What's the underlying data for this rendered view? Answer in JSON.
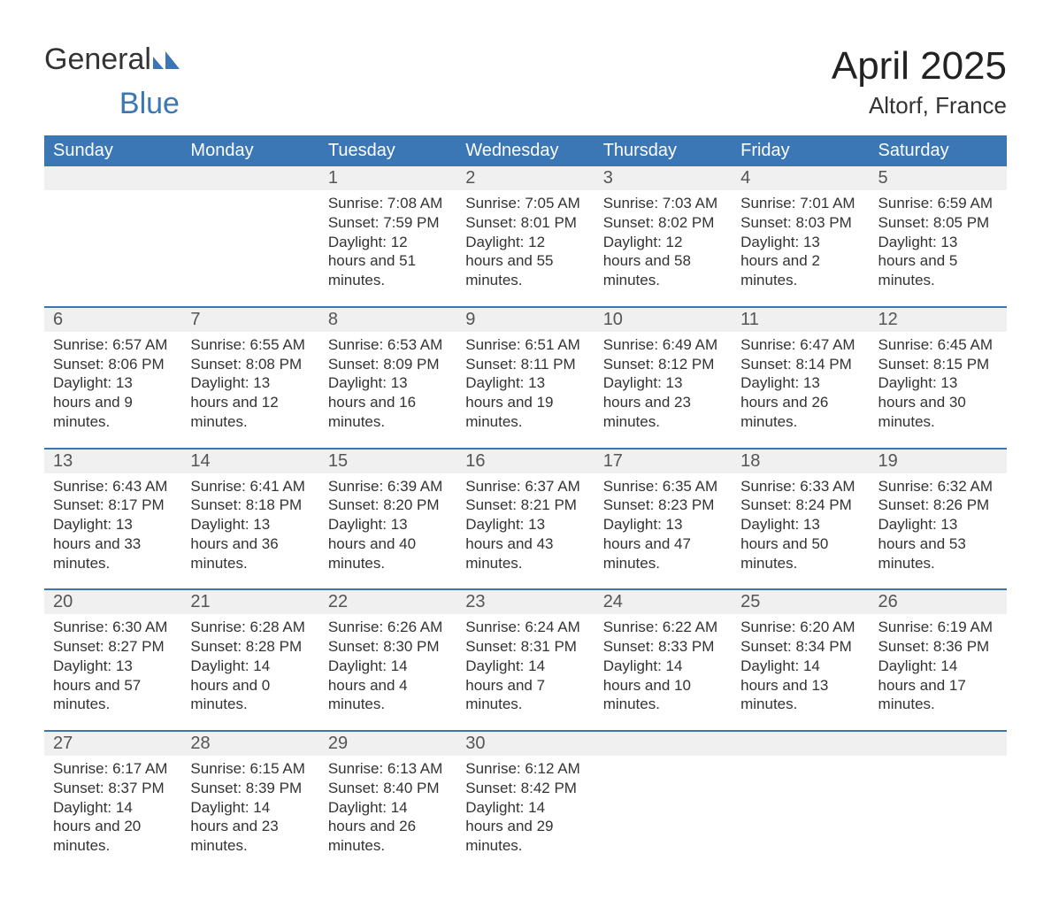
{
  "brand": {
    "word1": "General",
    "word2": "Blue"
  },
  "title": "April 2025",
  "location": "Altorf, France",
  "colors": {
    "header_bg": "#3b76b5",
    "header_text": "#ffffff",
    "daynum_bg": "#f0f0f0",
    "border_top": "#3b76b5",
    "body_text": "#333333",
    "page_bg": "#ffffff"
  },
  "columns": [
    "Sunday",
    "Monday",
    "Tuesday",
    "Wednesday",
    "Thursday",
    "Friday",
    "Saturday"
  ],
  "weeks": [
    [
      null,
      null,
      {
        "n": "1",
        "sunrise": "7:08 AM",
        "sunset": "7:59 PM",
        "daylight": "12 hours and 51 minutes."
      },
      {
        "n": "2",
        "sunrise": "7:05 AM",
        "sunset": "8:01 PM",
        "daylight": "12 hours and 55 minutes."
      },
      {
        "n": "3",
        "sunrise": "7:03 AM",
        "sunset": "8:02 PM",
        "daylight": "12 hours and 58 minutes."
      },
      {
        "n": "4",
        "sunrise": "7:01 AM",
        "sunset": "8:03 PM",
        "daylight": "13 hours and 2 minutes."
      },
      {
        "n": "5",
        "sunrise": "6:59 AM",
        "sunset": "8:05 PM",
        "daylight": "13 hours and 5 minutes."
      }
    ],
    [
      {
        "n": "6",
        "sunrise": "6:57 AM",
        "sunset": "8:06 PM",
        "daylight": "13 hours and 9 minutes."
      },
      {
        "n": "7",
        "sunrise": "6:55 AM",
        "sunset": "8:08 PM",
        "daylight": "13 hours and 12 minutes."
      },
      {
        "n": "8",
        "sunrise": "6:53 AM",
        "sunset": "8:09 PM",
        "daylight": "13 hours and 16 minutes."
      },
      {
        "n": "9",
        "sunrise": "6:51 AM",
        "sunset": "8:11 PM",
        "daylight": "13 hours and 19 minutes."
      },
      {
        "n": "10",
        "sunrise": "6:49 AM",
        "sunset": "8:12 PM",
        "daylight": "13 hours and 23 minutes."
      },
      {
        "n": "11",
        "sunrise": "6:47 AM",
        "sunset": "8:14 PM",
        "daylight": "13 hours and 26 minutes."
      },
      {
        "n": "12",
        "sunrise": "6:45 AM",
        "sunset": "8:15 PM",
        "daylight": "13 hours and 30 minutes."
      }
    ],
    [
      {
        "n": "13",
        "sunrise": "6:43 AM",
        "sunset": "8:17 PM",
        "daylight": "13 hours and 33 minutes."
      },
      {
        "n": "14",
        "sunrise": "6:41 AM",
        "sunset": "8:18 PM",
        "daylight": "13 hours and 36 minutes."
      },
      {
        "n": "15",
        "sunrise": "6:39 AM",
        "sunset": "8:20 PM",
        "daylight": "13 hours and 40 minutes."
      },
      {
        "n": "16",
        "sunrise": "6:37 AM",
        "sunset": "8:21 PM",
        "daylight": "13 hours and 43 minutes."
      },
      {
        "n": "17",
        "sunrise": "6:35 AM",
        "sunset": "8:23 PM",
        "daylight": "13 hours and 47 minutes."
      },
      {
        "n": "18",
        "sunrise": "6:33 AM",
        "sunset": "8:24 PM",
        "daylight": "13 hours and 50 minutes."
      },
      {
        "n": "19",
        "sunrise": "6:32 AM",
        "sunset": "8:26 PM",
        "daylight": "13 hours and 53 minutes."
      }
    ],
    [
      {
        "n": "20",
        "sunrise": "6:30 AM",
        "sunset": "8:27 PM",
        "daylight": "13 hours and 57 minutes."
      },
      {
        "n": "21",
        "sunrise": "6:28 AM",
        "sunset": "8:28 PM",
        "daylight": "14 hours and 0 minutes."
      },
      {
        "n": "22",
        "sunrise": "6:26 AM",
        "sunset": "8:30 PM",
        "daylight": "14 hours and 4 minutes."
      },
      {
        "n": "23",
        "sunrise": "6:24 AM",
        "sunset": "8:31 PM",
        "daylight": "14 hours and 7 minutes."
      },
      {
        "n": "24",
        "sunrise": "6:22 AM",
        "sunset": "8:33 PM",
        "daylight": "14 hours and 10 minutes."
      },
      {
        "n": "25",
        "sunrise": "6:20 AM",
        "sunset": "8:34 PM",
        "daylight": "14 hours and 13 minutes."
      },
      {
        "n": "26",
        "sunrise": "6:19 AM",
        "sunset": "8:36 PM",
        "daylight": "14 hours and 17 minutes."
      }
    ],
    [
      {
        "n": "27",
        "sunrise": "6:17 AM",
        "sunset": "8:37 PM",
        "daylight": "14 hours and 20 minutes."
      },
      {
        "n": "28",
        "sunrise": "6:15 AM",
        "sunset": "8:39 PM",
        "daylight": "14 hours and 23 minutes."
      },
      {
        "n": "29",
        "sunrise": "6:13 AM",
        "sunset": "8:40 PM",
        "daylight": "14 hours and 26 minutes."
      },
      {
        "n": "30",
        "sunrise": "6:12 AM",
        "sunset": "8:42 PM",
        "daylight": "14 hours and 29 minutes."
      },
      null,
      null,
      null
    ]
  ],
  "labels": {
    "sunrise": "Sunrise:",
    "sunset": "Sunset:",
    "daylight": "Daylight:"
  }
}
